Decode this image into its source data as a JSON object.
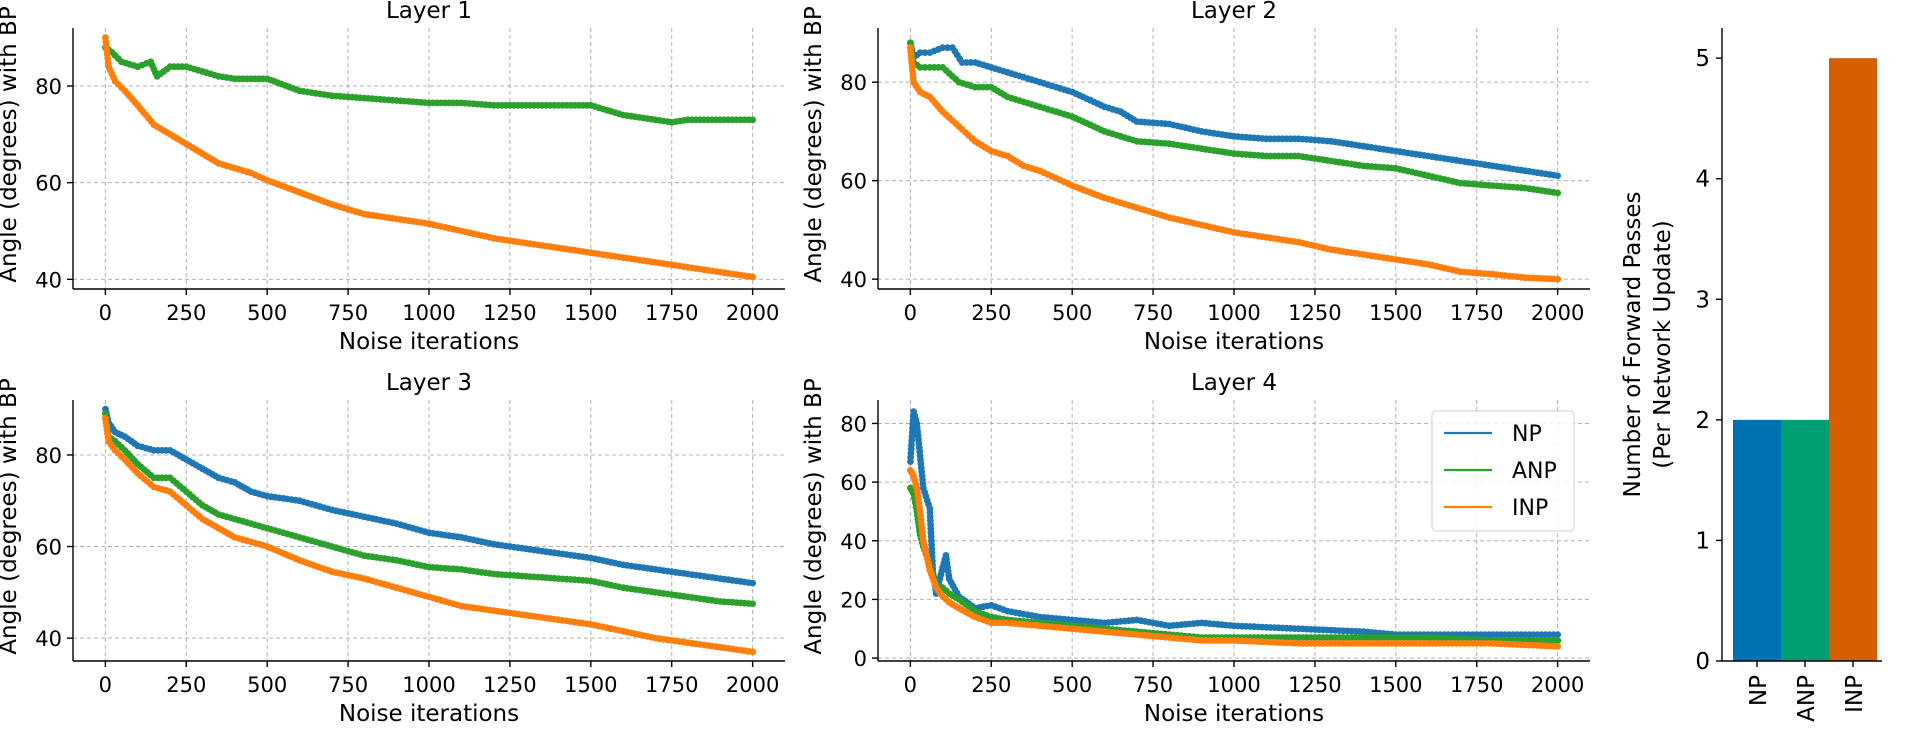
{
  "chart_data": [
    {
      "type": "line",
      "title": "Layer 1",
      "xlabel": "Noise iterations",
      "ylabel": "Angle (degrees) with BP",
      "xlim": [
        -100,
        2100
      ],
      "ylim": [
        38,
        92
      ],
      "xticks": [
        0,
        250,
        500,
        750,
        1000,
        1250,
        1500,
        1750,
        2000
      ],
      "yticks": [
        40,
        60,
        80
      ],
      "grid": true,
      "series": [
        {
          "name": "ANP",
          "color": "#2ca02c",
          "x": [
            0,
            20,
            50,
            100,
            140,
            160,
            200,
            250,
            300,
            350,
            400,
            450,
            500,
            600,
            700,
            800,
            900,
            1000,
            1100,
            1200,
            1300,
            1400,
            1500,
            1600,
            1700,
            1750,
            1800,
            1900,
            2000
          ],
          "y": [
            88,
            87,
            85,
            84,
            85,
            82,
            84,
            84,
            83,
            82,
            81.5,
            81.5,
            81.5,
            79,
            78,
            77.5,
            77,
            76.5,
            76.5,
            76,
            76,
            76,
            76,
            74,
            73,
            72.5,
            73,
            73,
            73
          ]
        },
        {
          "name": "INP",
          "color": "#ff7f0e",
          "x": [
            0,
            10,
            30,
            60,
            100,
            150,
            200,
            250,
            300,
            350,
            400,
            450,
            500,
            600,
            700,
            800,
            900,
            1000,
            1100,
            1200,
            1300,
            1400,
            1500,
            1600,
            1700,
            1800,
            1900,
            2000
          ],
          "y": [
            90,
            84,
            81,
            79,
            76,
            72,
            70,
            68,
            66,
            64,
            63,
            62,
            60.5,
            58,
            55.5,
            53.5,
            52.5,
            51.5,
            50,
            48.5,
            47.5,
            46.5,
            45.5,
            44.5,
            43.5,
            42.5,
            41.5,
            40.5
          ]
        }
      ]
    },
    {
      "type": "line",
      "title": "Layer 2",
      "xlabel": "Noise iterations",
      "ylabel": "Angle (degrees) with BP",
      "xlim": [
        -100,
        2100
      ],
      "ylim": [
        38,
        91
      ],
      "xticks": [
        0,
        250,
        500,
        750,
        1000,
        1250,
        1500,
        1750,
        2000
      ],
      "yticks": [
        40,
        60,
        80
      ],
      "grid": true,
      "series": [
        {
          "name": "NP",
          "color": "#1f77b4",
          "x": [
            0,
            10,
            30,
            60,
            100,
            130,
            160,
            200,
            250,
            300,
            400,
            500,
            600,
            650,
            700,
            800,
            900,
            1000,
            1100,
            1200,
            1300,
            1400,
            1500,
            1600,
            1700,
            1800,
            1900,
            2000
          ],
          "y": [
            88,
            85,
            86,
            86,
            87,
            87,
            84,
            84,
            83,
            82,
            80,
            78,
            75,
            74,
            72,
            71.5,
            70,
            69,
            68.5,
            68.5,
            68,
            67,
            66,
            65,
            64,
            63,
            62,
            61
          ]
        },
        {
          "name": "ANP",
          "color": "#2ca02c",
          "x": [
            0,
            10,
            30,
            60,
            100,
            150,
            200,
            250,
            300,
            350,
            400,
            500,
            600,
            700,
            800,
            900,
            1000,
            1100,
            1200,
            1300,
            1400,
            1500,
            1600,
            1700,
            1800,
            1900,
            2000
          ],
          "y": [
            88,
            84,
            83,
            83,
            83,
            80,
            79,
            79,
            77,
            76,
            75,
            73,
            70,
            68,
            67.5,
            66.5,
            65.5,
            65,
            65,
            64,
            63,
            62.5,
            61,
            59.5,
            59,
            58.5,
            57.5
          ]
        },
        {
          "name": "INP",
          "color": "#ff7f0e",
          "x": [
            0,
            10,
            30,
            60,
            100,
            150,
            200,
            250,
            300,
            350,
            400,
            450,
            500,
            600,
            700,
            800,
            900,
            1000,
            1100,
            1200,
            1300,
            1400,
            1500,
            1600,
            1700,
            1800,
            1900,
            2000
          ],
          "y": [
            87,
            80,
            78,
            77,
            74,
            71,
            68,
            66,
            65,
            63,
            62,
            60.5,
            59,
            56.5,
            54.5,
            52.5,
            51,
            49.5,
            48.5,
            47.5,
            46,
            45,
            44,
            43,
            41.5,
            41,
            40.3,
            40
          ]
        }
      ]
    },
    {
      "type": "line",
      "title": "Layer 3",
      "xlabel": "Noise iterations",
      "ylabel": "Angle (degrees) with BP",
      "xlim": [
        -100,
        2100
      ],
      "ylim": [
        35,
        92
      ],
      "xticks": [
        0,
        250,
        500,
        750,
        1000,
        1250,
        1500,
        1750,
        2000
      ],
      "yticks": [
        40,
        60,
        80
      ],
      "grid": true,
      "series": [
        {
          "name": "NP",
          "color": "#1f77b4",
          "x": [
            0,
            10,
            30,
            60,
            100,
            150,
            200,
            250,
            300,
            350,
            400,
            450,
            500,
            600,
            700,
            800,
            900,
            1000,
            1100,
            1200,
            1300,
            1400,
            1500,
            1600,
            1700,
            1800,
            1900,
            2000
          ],
          "y": [
            90,
            87,
            85,
            84,
            82,
            81,
            81,
            79,
            77,
            75,
            74,
            72,
            71,
            70,
            68,
            66.5,
            65,
            63,
            62,
            60.5,
            59.5,
            58.5,
            57.5,
            56,
            55,
            54,
            53,
            52
          ]
        },
        {
          "name": "ANP",
          "color": "#2ca02c",
          "x": [
            0,
            10,
            30,
            60,
            100,
            150,
            200,
            250,
            300,
            350,
            400,
            450,
            500,
            600,
            700,
            800,
            900,
            1000,
            1100,
            1200,
            1300,
            1400,
            1500,
            1600,
            1700,
            1800,
            1900,
            2000
          ],
          "y": [
            89,
            84,
            83,
            81,
            78,
            75,
            75,
            72,
            69,
            67,
            66,
            65,
            64,
            62,
            60,
            58,
            57,
            55.5,
            55,
            54,
            53.5,
            53,
            52.5,
            51,
            50,
            49,
            48,
            47.5
          ]
        },
        {
          "name": "INP",
          "color": "#ff7f0e",
          "x": [
            0,
            10,
            30,
            60,
            100,
            150,
            200,
            250,
            300,
            350,
            400,
            450,
            500,
            600,
            700,
            800,
            900,
            1000,
            1100,
            1200,
            1300,
            1400,
            1500,
            1600,
            1700,
            1800,
            1900,
            2000
          ],
          "y": [
            88,
            83,
            81,
            79,
            76,
            73,
            72,
            69,
            66,
            64,
            62,
            61,
            60,
            57,
            54.5,
            53,
            51,
            49,
            47,
            46,
            45,
            44,
            43,
            41.5,
            40,
            39,
            38,
            37
          ]
        }
      ]
    },
    {
      "type": "line",
      "title": "Layer 4",
      "xlabel": "Noise iterations",
      "ylabel": "Angle (degrees) with BP",
      "xlim": [
        -100,
        2100
      ],
      "ylim": [
        -1,
        88
      ],
      "xticks": [
        0,
        250,
        500,
        750,
        1000,
        1250,
        1500,
        1750,
        2000
      ],
      "yticks": [
        0,
        20,
        40,
        60,
        80
      ],
      "grid": true,
      "legend": "top-right",
      "series": [
        {
          "name": "NP",
          "color": "#1f77b4",
          "x": [
            0,
            10,
            20,
            40,
            60,
            70,
            80,
            100,
            110,
            120,
            150,
            200,
            250,
            300,
            400,
            500,
            600,
            700,
            800,
            900,
            1000,
            1200,
            1400,
            1500,
            1600,
            1800,
            2000
          ],
          "y": [
            67,
            84,
            80,
            58,
            51,
            29,
            22,
            31,
            35,
            27,
            21,
            17,
            18,
            16,
            14,
            13,
            12,
            13,
            11,
            12,
            11,
            10,
            9,
            8,
            8,
            8,
            8
          ]
        },
        {
          "name": "ANP",
          "color": "#2ca02c",
          "x": [
            0,
            10,
            20,
            30,
            40,
            60,
            80,
            100,
            120,
            150,
            200,
            250,
            300,
            400,
            500,
            600,
            700,
            800,
            900,
            1000,
            1200,
            1400,
            1600,
            1800,
            2000
          ],
          "y": [
            58,
            56,
            50,
            42,
            38,
            32,
            25,
            24,
            22,
            20,
            16,
            14,
            13,
            12,
            11,
            10,
            9,
            8,
            7,
            7,
            7,
            7,
            7,
            6,
            6
          ]
        },
        {
          "name": "INP",
          "color": "#ff7f0e",
          "x": [
            0,
            10,
            20,
            30,
            40,
            60,
            80,
            100,
            120,
            150,
            200,
            250,
            300,
            400,
            500,
            600,
            700,
            800,
            900,
            1000,
            1200,
            1400,
            1600,
            1800,
            2000
          ],
          "y": [
            64,
            62,
            58,
            50,
            40,
            30,
            24,
            21,
            19,
            17,
            14,
            12,
            12,
            11,
            10,
            9,
            8,
            7,
            6,
            6,
            5,
            5,
            5,
            5,
            4
          ]
        }
      ]
    },
    {
      "type": "bar",
      "ylabel": "Number of Forward Passes\n(Per Network Update)",
      "categories": [
        "NP",
        "ANP",
        "INP"
      ],
      "values": [
        2,
        2,
        5
      ],
      "colors": [
        "#0072b2",
        "#009e73",
        "#d55e00"
      ],
      "ylim": [
        0,
        5.25
      ],
      "yticks": [
        0,
        1,
        2,
        3,
        4,
        5
      ],
      "grid": false
    }
  ]
}
